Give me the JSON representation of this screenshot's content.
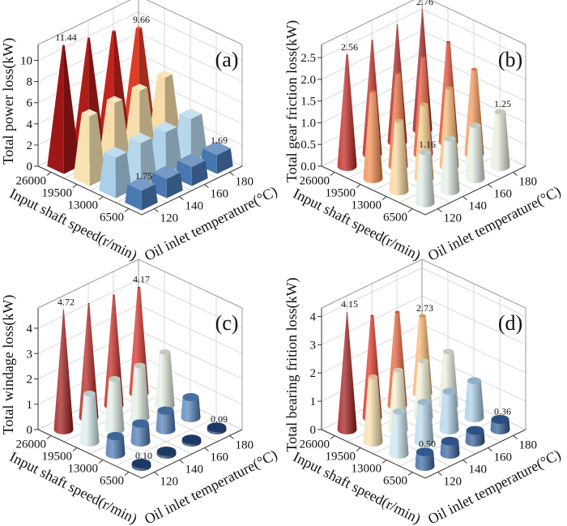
{
  "chart_data": [
    {
      "type": "bar3d",
      "panel_label": "(a)",
      "zlabel": "Total power loss(kW)",
      "xlabel": "Input shaft speed(r/min)",
      "ylabel": "Oil inlet temperature(°C)",
      "speeds": [
        "26000",
        "19500",
        "13000",
        "6500"
      ],
      "temperatures": [
        "120",
        "140",
        "160",
        "180"
      ],
      "zlim": [
        0,
        11.5
      ],
      "zticks": [
        "0",
        "2",
        "4",
        "6",
        "8",
        "10"
      ],
      "zticks_values": [
        0,
        2,
        4,
        6,
        8,
        10
      ],
      "bar_shape": "pyramid",
      "values": [
        [
          11.44,
          11.0,
          10.5,
          9.66
        ],
        [
          6.2,
          6.3,
          6.3,
          6.4
        ],
        [
          3.6,
          3.8,
          3.7,
          3.8
        ],
        [
          1.75,
          1.72,
          1.7,
          1.69
        ]
      ],
      "annotations": [
        {
          "speed": "26000",
          "temp": "120",
          "text": "11.44"
        },
        {
          "speed": "26000",
          "temp": "180",
          "text": "9.66"
        },
        {
          "speed": "6500",
          "temp": "120",
          "text": "1.75"
        },
        {
          "speed": "6500",
          "temp": "180",
          "text": "1.69"
        }
      ]
    },
    {
      "type": "bar3d",
      "panel_label": "(b)",
      "zlabel": "Total gear friction loss(kW)",
      "xlabel": "Input shaft speed(r/min)",
      "ylabel": "Oil inlet temperature(°C)",
      "speeds": [
        "26000",
        "19500",
        "13000",
        "6500"
      ],
      "temperatures": [
        "120",
        "140",
        "160",
        "180"
      ],
      "zlim": [
        0,
        2.8
      ],
      "zticks": [
        "0.0",
        "0.5",
        "1.0",
        "1.5",
        "2.0",
        "2.5"
      ],
      "zticks_values": [
        0,
        0.5,
        1.0,
        1.5,
        2.0,
        2.5
      ],
      "bar_shape": "cone",
      "values": [
        [
          2.56,
          2.62,
          2.7,
          2.76
        ],
        [
          2.0,
          2.15,
          2.25,
          2.3
        ],
        [
          1.6,
          1.7,
          1.8,
          1.95
        ],
        [
          1.16,
          1.19,
          1.22,
          1.25
        ]
      ],
      "annotations": [
        {
          "speed": "26000",
          "temp": "120",
          "text": "2.56"
        },
        {
          "speed": "26000",
          "temp": "180",
          "text": "2.76"
        },
        {
          "speed": "6500",
          "temp": "120",
          "text": "1.16"
        },
        {
          "speed": "6500",
          "temp": "180",
          "text": "1.25"
        }
      ]
    },
    {
      "type": "bar3d",
      "panel_label": "(c)",
      "zlabel": "Total windage loss(kW)",
      "xlabel": "Input shaft speed(r/min)",
      "ylabel": "Oil inlet temperature(°C)",
      "speeds": [
        "26000",
        "19500",
        "13000",
        "6500"
      ],
      "temperatures": [
        "120",
        "140",
        "160",
        "180"
      ],
      "zlim": [
        0,
        4.8
      ],
      "zticks": [
        "0",
        "1",
        "2",
        "3",
        "4"
      ],
      "zticks_values": [
        0,
        1,
        2,
        3,
        4
      ],
      "bar_shape": "cone",
      "values": [
        [
          4.72,
          4.5,
          4.35,
          4.17
        ],
        [
          1.9,
          2.0,
          2.05,
          2.1
        ],
        [
          0.7,
          0.72,
          0.75,
          0.8
        ],
        [
          0.1,
          0.1,
          0.09,
          0.09
        ]
      ],
      "annotations": [
        {
          "speed": "26000",
          "temp": "120",
          "text": "4.72"
        },
        {
          "speed": "26000",
          "temp": "180",
          "text": "4.17"
        },
        {
          "speed": "6500",
          "temp": "120",
          "text": "0.10"
        },
        {
          "speed": "6500",
          "temp": "180",
          "text": "0.09"
        }
      ]
    },
    {
      "type": "bar3d",
      "panel_label": "(d)",
      "zlabel": "Total bearing frition loss(kW)",
      "xlabel": "Input shaft speed(r/min)",
      "ylabel": "Oil inlet temperature(°C)",
      "speeds": [
        "26000",
        "19500",
        "13000",
        "6500"
      ],
      "temperatures": [
        "120",
        "140",
        "160",
        "180"
      ],
      "zlim": [
        0,
        4.3
      ],
      "zticks": [
        "0",
        "1",
        "2",
        "3",
        "4"
      ],
      "zticks_values": [
        0,
        1,
        2,
        3,
        4
      ],
      "bar_shape": "cone",
      "values": [
        [
          4.15,
          3.6,
          3.3,
          2.73
        ],
        [
          2.3,
          2.1,
          2.0,
          1.9
        ],
        [
          1.5,
          1.4,
          1.35,
          1.3
        ],
        [
          0.5,
          0.45,
          0.4,
          0.36
        ]
      ],
      "annotations": [
        {
          "speed": "26000",
          "temp": "120",
          "text": "4.15"
        },
        {
          "speed": "26000",
          "temp": "180",
          "text": "2.73"
        },
        {
          "speed": "6500",
          "temp": "120",
          "text": "0.50"
        },
        {
          "speed": "6500",
          "temp": "180",
          "text": "0.36"
        }
      ]
    }
  ],
  "colormap": [
    "#1c3b6c",
    "#3b6aa8",
    "#7fb0dc",
    "#d3ecf5",
    "#f4f0cf",
    "#fcc77c",
    "#f07a3d",
    "#d8291f",
    "#9e1716"
  ]
}
